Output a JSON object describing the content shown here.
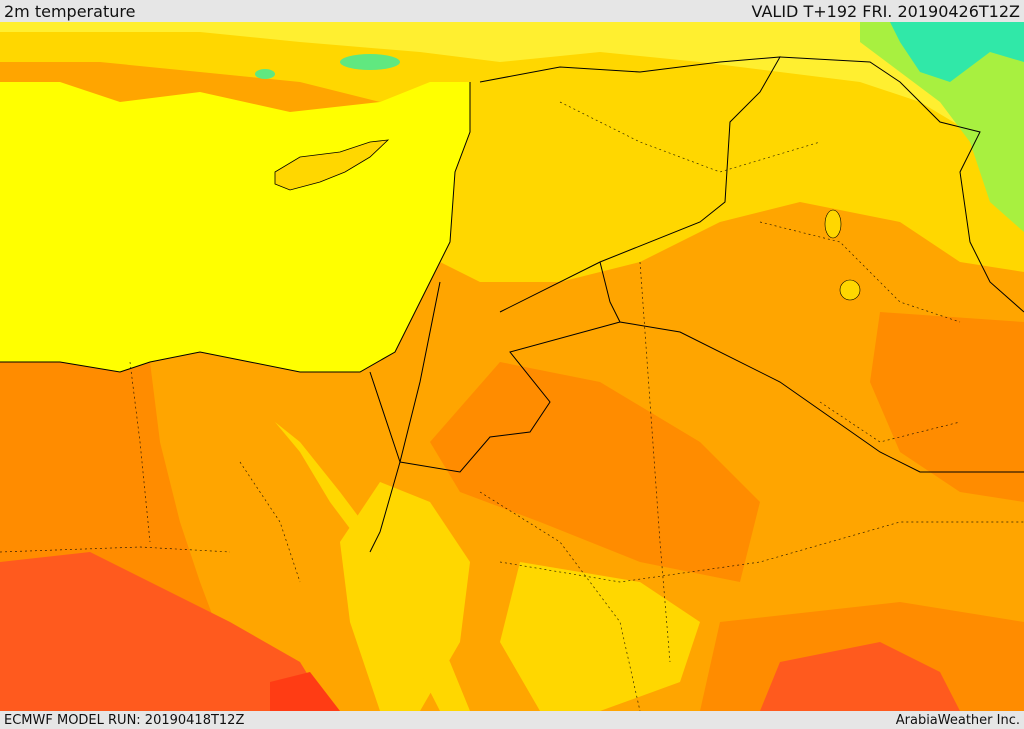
{
  "header": {
    "title": "2m temperature",
    "valid": "VALID T+192 FRI. 20190426T12Z"
  },
  "footer": {
    "model_run": "ECMWF MODEL RUN: 20190418T12Z",
    "credit": "ArabiaWeather Inc."
  },
  "colors": {
    "sea": "#ffff00",
    "hot_base": "#ffa500",
    "mild": "#ffd700",
    "very_hot": "#ff8c00",
    "hottest": "#ff5a1e",
    "extreme": "#ff3c14",
    "cool": "#90ee50",
    "cold": "#00e0c0",
    "border": "#000000"
  },
  "icons": {
    "map": "temperature-map"
  }
}
